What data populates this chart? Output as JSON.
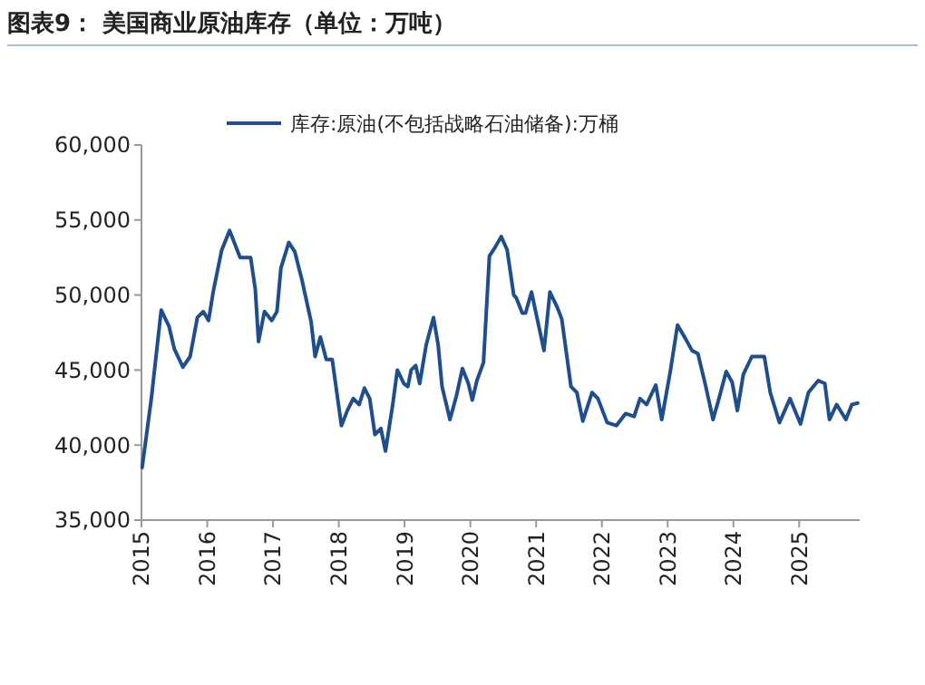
{
  "chart_data": {
    "type": "line",
    "title": "图表9：  美国商业原油库存（单位：万吨）",
    "xlim": [
      2015,
      2025.92
    ],
    "xticks": [
      2015,
      2016,
      2017,
      2018,
      2019,
      2020,
      2021,
      2022,
      2023,
      2024,
      2025
    ],
    "ylim": [
      35000,
      60000
    ],
    "yticks": [
      {
        "value": 35000,
        "label": "35,000"
      },
      {
        "value": 40000,
        "label": "40,000"
      },
      {
        "value": 45000,
        "label": "45,000"
      },
      {
        "value": 50000,
        "label": "50,000"
      },
      {
        "value": 55000,
        "label": "55,000"
      },
      {
        "value": 60000,
        "label": "60,000"
      }
    ],
    "legend": "top",
    "grid": false,
    "series": [
      {
        "name": "库存:原油(不包括战略石油储备):万桶",
        "color": "#1f4e8c",
        "x": [
          2015.01,
          2015.15,
          2015.3,
          2015.42,
          2015.5,
          2015.63,
          2015.74,
          2015.85,
          2015.94,
          2016.02,
          2016.09,
          2016.22,
          2016.34,
          2016.5,
          2016.66,
          2016.73,
          2016.78,
          2016.87,
          2016.98,
          2017.06,
          2017.12,
          2017.24,
          2017.33,
          2017.44,
          2017.58,
          2017.64,
          2017.72,
          2017.81,
          2017.9,
          2018.04,
          2018.13,
          2018.22,
          2018.31,
          2018.39,
          2018.47,
          2018.55,
          2018.64,
          2018.71,
          2018.82,
          2018.89,
          2018.99,
          2019.05,
          2019.1,
          2019.17,
          2019.23,
          2019.33,
          2019.44,
          2019.51,
          2019.57,
          2019.69,
          2019.79,
          2019.88,
          2019.97,
          2020.03,
          2020.1,
          2020.2,
          2020.29,
          2020.38,
          2020.47,
          2020.56,
          2020.66,
          2020.7,
          2020.79,
          2020.84,
          2020.93,
          2021.12,
          2021.21,
          2021.32,
          2021.39,
          2021.53,
          2021.62,
          2021.71,
          2021.85,
          2021.94,
          2022.08,
          2022.22,
          2022.36,
          2022.49,
          2022.58,
          2022.68,
          2022.82,
          2022.91,
          2023.04,
          2023.15,
          2023.27,
          2023.37,
          2023.46,
          2023.58,
          2023.69,
          2023.78,
          2023.89,
          2023.98,
          2024.06,
          2024.15,
          2024.28,
          2024.47,
          2024.56,
          2024.7,
          2024.86,
          2025.02,
          2025.14,
          2025.29,
          2025.39,
          2025.46,
          2025.57,
          2025.71,
          2025.8,
          2025.89
        ],
        "values": [
          38500,
          43100,
          49000,
          47900,
          46400,
          45200,
          45900,
          48500,
          48900,
          48300,
          50200,
          53000,
          54300,
          52500,
          52500,
          50400,
          46900,
          48900,
          48300,
          48900,
          51800,
          53500,
          52900,
          51000,
          48200,
          45900,
          47200,
          45700,
          45700,
          41300,
          42300,
          43100,
          42700,
          43800,
          43100,
          40700,
          41100,
          39600,
          42700,
          45000,
          44100,
          43900,
          45000,
          45300,
          44100,
          46700,
          48500,
          46700,
          43900,
          41700,
          43300,
          45100,
          44100,
          43000,
          44300,
          45500,
          52600,
          53200,
          53900,
          53000,
          50000,
          49800,
          48800,
          48800,
          50200,
          46300,
          50200,
          49200,
          48400,
          43900,
          43500,
          41600,
          43500,
          43100,
          41500,
          41300,
          42100,
          41900,
          43100,
          42700,
          44000,
          41700,
          44900,
          48000,
          47100,
          46300,
          46100,
          43900,
          41700,
          43100,
          44900,
          44200,
          42300,
          44700,
          45900,
          45900,
          43500,
          41500,
          43100,
          41400,
          43500,
          44300,
          44100,
          41700,
          42700,
          41700,
          42700,
          42800
        ]
      }
    ]
  }
}
